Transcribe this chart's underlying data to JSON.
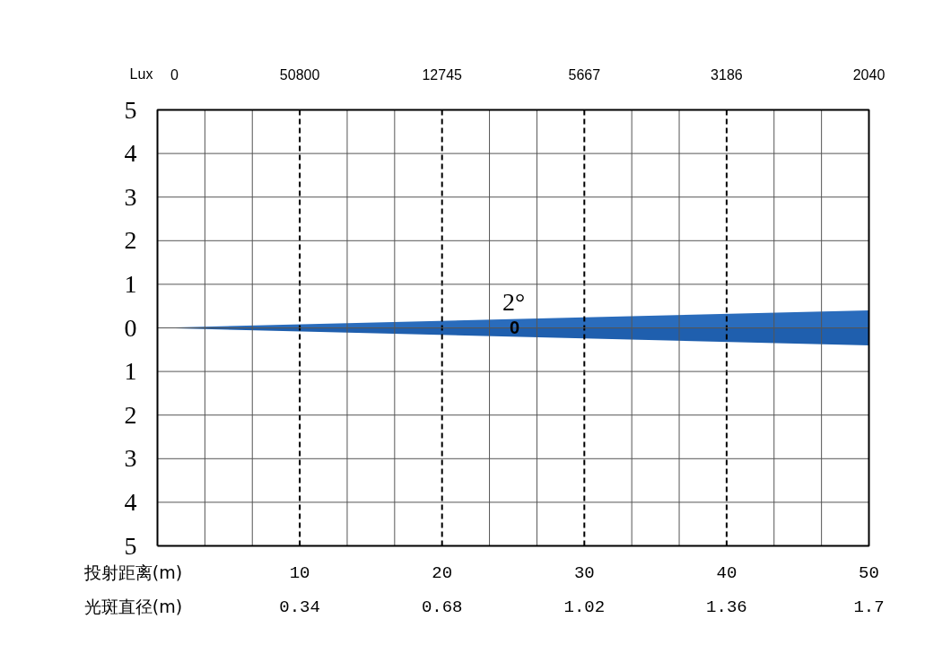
{
  "chart_data": {
    "type": "area",
    "xlabel": "投射距离(m)",
    "x": [
      0,
      50
    ],
    "series": [
      {
        "color": "#2a6cbc",
        "values": [
          0,
          0.4
        ]
      },
      {
        "color": "#1f5fae",
        "values": [
          0,
          -0.4
        ]
      }
    ],
    "xlim": [
      0,
      50
    ],
    "xticks": [
      {
        "value": 3.333,
        "label": null
      },
      {
        "value": 6.667,
        "label": null
      },
      10,
      {
        "value": 13.333,
        "label": null
      },
      {
        "value": 16.667,
        "label": null
      },
      20,
      {
        "value": 23.333,
        "label": null
      },
      {
        "value": 26.667,
        "label": null
      },
      30,
      {
        "value": 33.333,
        "label": null
      },
      {
        "value": 36.667,
        "label": null
      },
      40,
      {
        "value": 43.333,
        "label": null
      },
      {
        "value": 46.667,
        "label": null
      },
      50
    ],
    "ylim": [
      -5,
      5
    ],
    "yticks": [
      {
        "value": 5,
        "label": "5"
      },
      {
        "value": 4,
        "label": "4"
      },
      {
        "value": 3,
        "label": "3"
      },
      {
        "value": 2,
        "label": "2"
      },
      {
        "value": 1,
        "label": "1"
      },
      {
        "value": 0,
        "label": "0"
      },
      {
        "value": -1,
        "label": "1"
      },
      {
        "value": -2,
        "label": "2"
      },
      {
        "value": -3,
        "label": "3"
      },
      {
        "value": -4,
        "label": "4"
      },
      {
        "value": -5,
        "label": "5"
      }
    ],
    "annotations": [
      "2°",
      "0",
      "Lux",
      "0",
      "50800",
      "12745",
      "5667",
      "3186",
      "2040",
      "光斑直径(m)",
      "0.34",
      "0.68",
      "1.02",
      "1.36",
      "1.7"
    ],
    "grid": true
  }
}
